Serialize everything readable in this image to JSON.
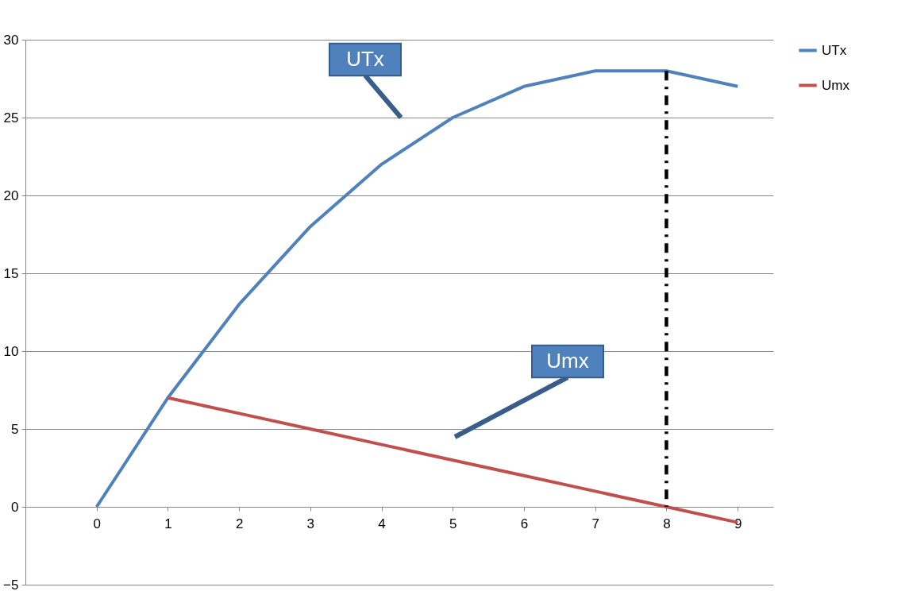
{
  "chart_data": {
    "type": "line",
    "xlim": [
      -1,
      9.5
    ],
    "xticks": [
      0,
      1,
      2,
      3,
      4,
      5,
      6,
      7,
      8,
      9
    ],
    "ylim": [
      -5,
      30
    ],
    "yticks": [
      -5,
      0,
      5,
      10,
      15,
      20,
      25,
      30
    ],
    "grid": "y",
    "legend": "right",
    "series": [
      {
        "name": "UTx",
        "color": "#4f81bd",
        "x": [
          0,
          1,
          2,
          3,
          4,
          5,
          6,
          7,
          8,
          9
        ],
        "values": [
          0,
          7,
          13,
          18,
          22,
          25,
          27,
          28,
          28,
          27
        ]
      },
      {
        "name": "Umx",
        "color": "#c0504d",
        "x": [
          1,
          2,
          3,
          4,
          5,
          6,
          7,
          8,
          9
        ],
        "values": [
          7,
          6,
          5,
          4,
          3,
          2,
          1,
          0,
          -1
        ]
      },
      {
        "type": "line",
        "color": "#000000",
        "line_style": "dashed",
        "x": [
          8,
          8
        ],
        "values": [
          28,
          0
        ]
      }
    ],
    "annotations": [
      "UTx",
      "Umx"
    ]
  }
}
